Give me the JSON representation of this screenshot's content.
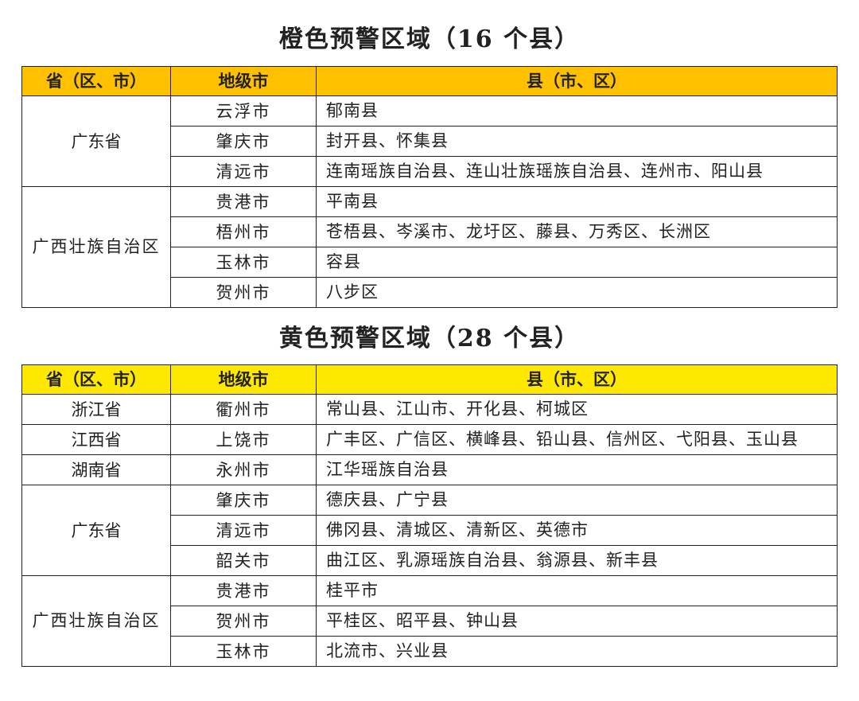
{
  "colors": {
    "orange_header": "#FFC000",
    "yellow_header": "#FFE800"
  },
  "headers": [
    "省（区、市）",
    "地级市",
    "县（市、区）"
  ],
  "orange": {
    "title": "橙色预警区域（16 个县）",
    "groups": [
      {
        "province": "广东省",
        "rows": [
          {
            "city": "云浮市",
            "counties": "郁南县"
          },
          {
            "city": "肇庆市",
            "counties": "封开县、怀集县"
          },
          {
            "city": "清远市",
            "counties": "连南瑶族自治县、连山壮族瑶族自治县、连州市、阳山县"
          }
        ]
      },
      {
        "province": "广西壮族自治区",
        "rows": [
          {
            "city": "贵港市",
            "counties": "平南县"
          },
          {
            "city": "梧州市",
            "counties": "苍梧县、岑溪市、龙圩区、藤县、万秀区、长洲区"
          },
          {
            "city": "玉林市",
            "counties": "容县"
          },
          {
            "city": "贺州市",
            "counties": "八步区"
          }
        ]
      }
    ]
  },
  "yellow": {
    "title": "黄色预警区域（28 个县）",
    "groups": [
      {
        "province": "浙江省",
        "rows": [
          {
            "city": "衢州市",
            "counties": "常山县、江山市、开化县、柯城区"
          }
        ]
      },
      {
        "province": "江西省",
        "rows": [
          {
            "city": "上饶市",
            "counties": "广丰区、广信区、横峰县、铅山县、信州区、弋阳县、玉山县"
          }
        ]
      },
      {
        "province": "湖南省",
        "rows": [
          {
            "city": "永州市",
            "counties": "江华瑶族自治县"
          }
        ]
      },
      {
        "province": "广东省",
        "rows": [
          {
            "city": "肇庆市",
            "counties": "德庆县、广宁县"
          },
          {
            "city": "清远市",
            "counties": "佛冈县、清城区、清新区、英德市"
          },
          {
            "city": "韶关市",
            "counties": "曲江区、乳源瑶族自治县、翁源县、新丰县"
          }
        ]
      },
      {
        "province": "广西壮族自治区",
        "rows": [
          {
            "city": "贵港市",
            "counties": "桂平市"
          },
          {
            "city": "贺州市",
            "counties": "平桂区、昭平县、钟山县"
          },
          {
            "city": "玉林市",
            "counties": "北流市、兴业县"
          }
        ]
      }
    ]
  }
}
